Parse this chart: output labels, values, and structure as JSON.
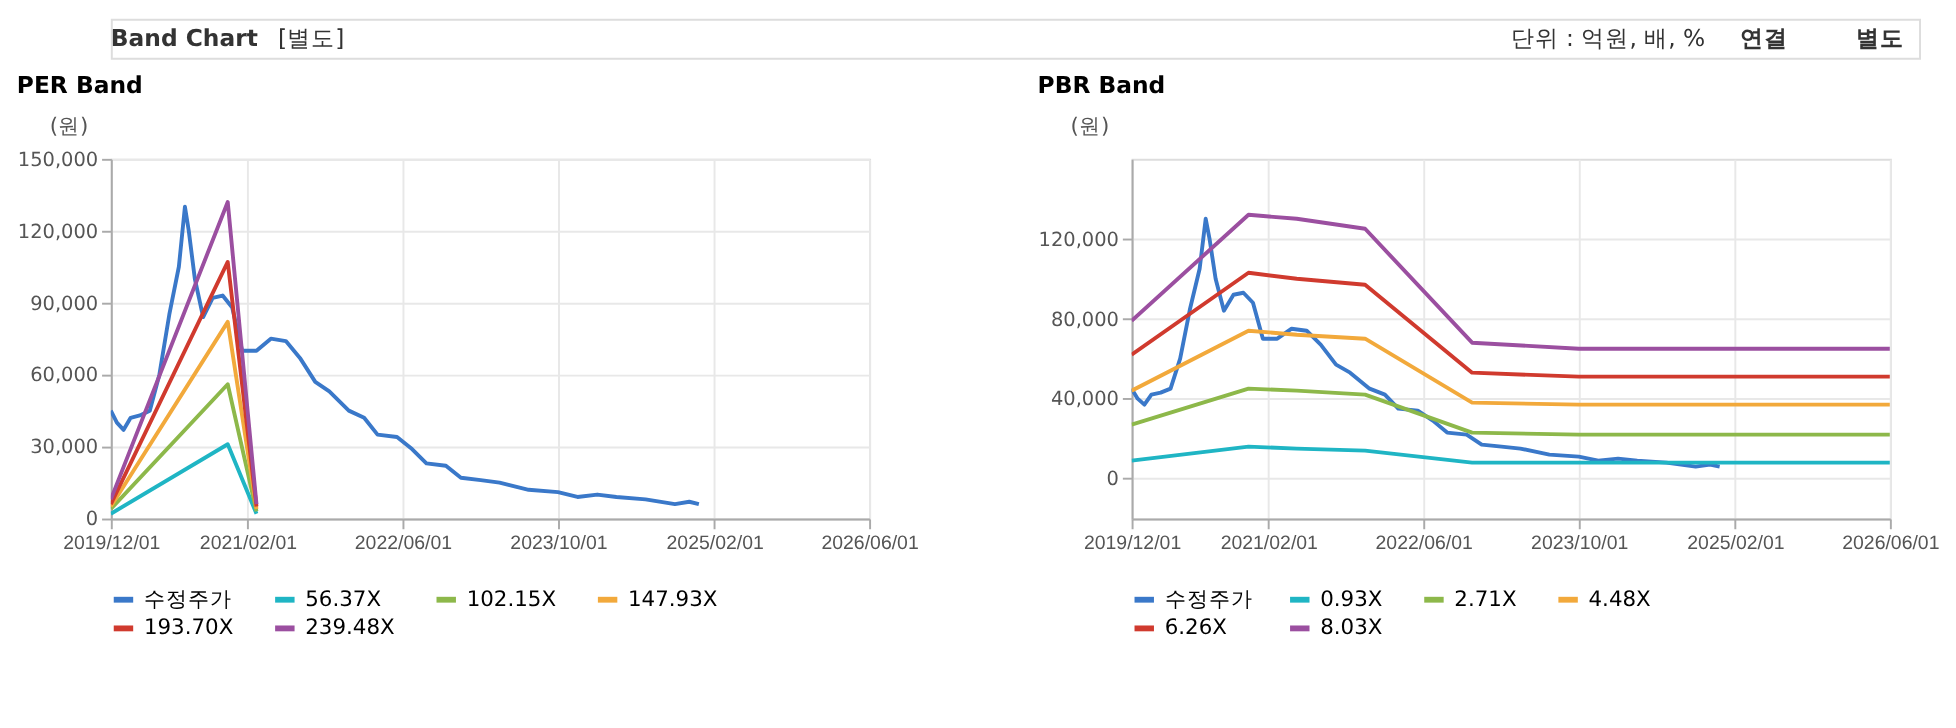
{
  "chart_data": [
    {
      "type": "line",
      "title": "PER Band",
      "ylabel": "(원)",
      "annotations": [
        "Band Chart",
        "[별도]",
        "단위 : 억원, 배, %",
        "연결",
        "별도"
      ],
      "xlim": [
        "2019-12-01",
        "2026-06-01"
      ],
      "xticks": [
        {
          "value": "2019-12-01",
          "label": "2019/12/01"
        },
        {
          "value": "2021-02-01",
          "label": "2021/02/01"
        },
        {
          "value": "2022-06-01",
          "label": "2022/06/01"
        },
        {
          "value": "2023-10-01",
          "label": "2023/10/01"
        },
        {
          "value": "2025-02-01",
          "label": "2025/02/01"
        },
        {
          "value": "2026-06-01",
          "label": "2026/06/01"
        }
      ],
      "ylim": [
        0,
        150000
      ],
      "yticks": [
        0,
        {
          "value": 30000,
          "label": "30,000"
        },
        {
          "value": 60000,
          "label": "60,000"
        },
        {
          "value": 90000,
          "label": "90,000"
        },
        {
          "value": 120000,
          "label": "120,000"
        },
        {
          "value": 150000,
          "label": "150,000"
        }
      ],
      "grid": true,
      "legend": "bottom",
      "marker": "none",
      "line_style": "solid",
      "series": [
        {
          "name": "수정주가",
          "color": "#3a78c9",
          "x": [
            "2019-12-01",
            "2019-12-20",
            "2020-01-10",
            "2020-02-01",
            "2020-03-01",
            "2020-04-01",
            "2020-05-01",
            "2020-06-01",
            "2020-07-01",
            "2020-07-20",
            "2020-08-01",
            "2020-08-20",
            "2020-09-15",
            "2020-10-15",
            "2020-11-15",
            "2020-12-15",
            "2021-01-15",
            "2021-03-01",
            "2021-04-15",
            "2021-06-01",
            "2021-07-15",
            "2021-09-01",
            "2021-10-15",
            "2021-12-15",
            "2022-02-01",
            "2022-03-15",
            "2022-05-15",
            "2022-07-01",
            "2022-08-15",
            "2022-10-15",
            "2022-12-01",
            "2023-02-01",
            "2023-04-01",
            "2023-07-01",
            "2023-10-01",
            "2023-12-01",
            "2024-02-01",
            "2024-04-01",
            "2024-07-01",
            "2024-10-01",
            "2024-11-15",
            "2024-12-15"
          ],
          "values": [
            45000,
            40000,
            37000,
            42000,
            43000,
            45000,
            60000,
            85000,
            105000,
            130000,
            120000,
            100000,
            84000,
            92000,
            93000,
            88000,
            70000,
            70000,
            75000,
            74000,
            67000,
            57000,
            53000,
            45000,
            42000,
            35000,
            34000,
            29000,
            23000,
            22000,
            17000,
            16000,
            15000,
            12000,
            11000,
            9000,
            10000,
            9000,
            8000,
            6000,
            7000,
            6000
          ]
        },
        {
          "name": "56.37X",
          "color": "#1fb5c4",
          "x": [
            "2019-12-01",
            "2020-12-01",
            "2021-03-01"
          ],
          "values": [
            2000,
            31000,
            2000
          ]
        },
        {
          "name": "102.15X",
          "color": "#8db84a",
          "x": [
            "2019-12-01",
            "2020-12-01",
            "2021-03-01"
          ],
          "values": [
            4000,
            56000,
            3000
          ]
        },
        {
          "name": "147.93X",
          "color": "#f2a93b",
          "x": [
            "2019-12-01",
            "2020-12-01",
            "2021-03-01"
          ],
          "values": [
            5000,
            82000,
            4000
          ]
        },
        {
          "name": "193.70X",
          "color": "#d03a2e",
          "x": [
            "2019-12-01",
            "2020-12-01",
            "2021-03-01"
          ],
          "values": [
            6000,
            107000,
            5000
          ]
        },
        {
          "name": "239.48X",
          "color": "#9b4fa0",
          "x": [
            "2019-12-01",
            "2020-12-01",
            "2021-03-01"
          ],
          "values": [
            8000,
            132000,
            6000
          ]
        }
      ]
    },
    {
      "type": "line",
      "title": "PBR Band",
      "ylabel": "(원)",
      "xlim": [
        "2019-12-01",
        "2026-06-01"
      ],
      "xticks": [
        {
          "value": "2019-12-01",
          "label": "2019/12/01"
        },
        {
          "value": "2021-02-01",
          "label": "2021/02/01"
        },
        {
          "value": "2022-06-01",
          "label": "2022/06/01"
        },
        {
          "value": "2023-10-01",
          "label": "2023/10/01"
        },
        {
          "value": "2025-02-01",
          "label": "2025/02/01"
        },
        {
          "value": "2026-06-01",
          "label": "2026/06/01"
        }
      ],
      "ylim": [
        -20000,
        160000
      ],
      "yticks": [
        0,
        {
          "value": 40000,
          "label": "40,000"
        },
        {
          "value": 80000,
          "label": "80,000"
        },
        {
          "value": 120000,
          "label": "120,000"
        }
      ],
      "grid": true,
      "legend": "bottom",
      "marker": "none",
      "line_style": "solid",
      "series": [
        {
          "name": "수정주가",
          "color": "#3a78c9",
          "x": [
            "2019-12-01",
            "2019-12-20",
            "2020-01-10",
            "2020-02-01",
            "2020-03-01",
            "2020-04-01",
            "2020-05-01",
            "2020-06-01",
            "2020-07-01",
            "2020-07-20",
            "2020-08-01",
            "2020-08-20",
            "2020-09-15",
            "2020-10-15",
            "2020-11-15",
            "2020-12-15",
            "2021-01-15",
            "2021-03-01",
            "2021-04-15",
            "2021-06-01",
            "2021-07-15",
            "2021-09-01",
            "2021-10-15",
            "2021-12-15",
            "2022-02-01",
            "2022-03-15",
            "2022-05-15",
            "2022-07-01",
            "2022-08-15",
            "2022-10-15",
            "2022-12-01",
            "2023-02-01",
            "2023-04-01",
            "2023-07-01",
            "2023-10-01",
            "2023-12-01",
            "2024-02-01",
            "2024-04-01",
            "2024-07-01",
            "2024-10-01",
            "2024-11-15",
            "2024-12-15"
          ],
          "values": [
            45000,
            40000,
            37000,
            42000,
            43000,
            45000,
            60000,
            85000,
            105000,
            130000,
            120000,
            100000,
            84000,
            92000,
            93000,
            88000,
            70000,
            70000,
            75000,
            74000,
            67000,
            57000,
            53000,
            45000,
            42000,
            35000,
            34000,
            29000,
            23000,
            22000,
            17000,
            16000,
            15000,
            12000,
            11000,
            9000,
            10000,
            9000,
            8000,
            6000,
            7000,
            6000
          ]
        },
        {
          "name": "0.93X",
          "color": "#1fb5c4",
          "x": [
            "2019-12-01",
            "2020-12-01",
            "2021-05-01",
            "2021-12-01",
            "2022-11-01",
            "2023-10-01",
            "2026-06-01"
          ],
          "values": [
            9000,
            16000,
            15000,
            14000,
            8000,
            8000,
            8000
          ]
        },
        {
          "name": "2.71X",
          "color": "#8db84a",
          "x": [
            "2019-12-01",
            "2020-12-01",
            "2021-05-01",
            "2021-12-01",
            "2022-11-01",
            "2023-10-01",
            "2026-06-01"
          ],
          "values": [
            27000,
            45000,
            44000,
            42000,
            23000,
            22000,
            22000
          ]
        },
        {
          "name": "4.48X",
          "color": "#f2a93b",
          "x": [
            "2019-12-01",
            "2020-12-01",
            "2021-05-01",
            "2021-12-01",
            "2022-11-01",
            "2023-10-01",
            "2026-06-01"
          ],
          "values": [
            44000,
            74000,
            72000,
            70000,
            38000,
            37000,
            37000
          ]
        },
        {
          "name": "6.26X",
          "color": "#d03a2e",
          "x": [
            "2019-12-01",
            "2020-12-01",
            "2021-05-01",
            "2021-12-01",
            "2022-11-01",
            "2023-10-01",
            "2026-06-01"
          ],
          "values": [
            62000,
            103000,
            100000,
            97000,
            53000,
            51000,
            51000
          ]
        },
        {
          "name": "8.03X",
          "color": "#9b4fa0",
          "x": [
            "2019-12-01",
            "2020-12-01",
            "2021-05-01",
            "2021-12-01",
            "2022-11-01",
            "2023-10-01",
            "2026-06-01"
          ],
          "values": [
            79000,
            132000,
            130000,
            125000,
            68000,
            65000,
            65000
          ]
        }
      ]
    }
  ]
}
